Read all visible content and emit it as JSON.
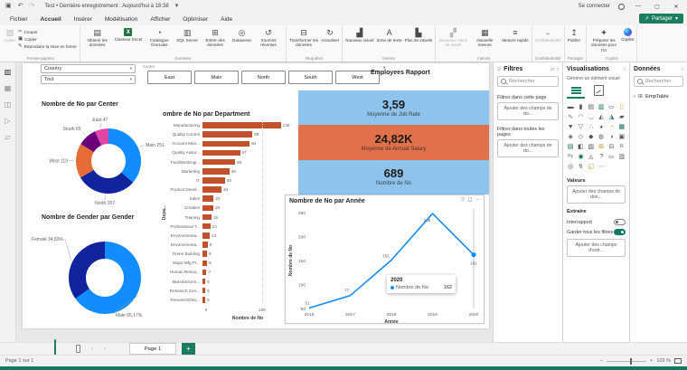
{
  "colors": {
    "accent_green": "#1B7D5F",
    "bar_color": "#C0512B",
    "card_blue": "#8DC3EC",
    "card_orange": "#E1714B",
    "line_color": "#118DFF"
  },
  "titlebar": {
    "title": "Test • Dernière enregistrement : Aujourd'hui à 18:38",
    "signin": "Se connecter"
  },
  "menubar": {
    "tabs": [
      "Fichier",
      "Accueil",
      "Insérer",
      "Modélisation",
      "Afficher",
      "Optimiser",
      "Aide"
    ],
    "active_tab": "Accueil",
    "share_label": "Partager"
  },
  "ribbon": {
    "groups": [
      {
        "label": "Presse-papiers",
        "clipboard": true,
        "items": [
          {
            "label": "Coller",
            "icon": "paste-icon",
            "disabled": true
          },
          {
            "label": "Couper",
            "icon": "cut-icon",
            "disabled": true
          },
          {
            "label": "Copier",
            "icon": "copy-icon",
            "disabled": true
          },
          {
            "label": "Reproduire la mise en forme",
            "icon": "format-painter-icon",
            "disabled": true
          }
        ]
      },
      {
        "label": "Données",
        "items": [
          {
            "label": "Obtenir les données",
            "icon": "get-data-icon"
          },
          {
            "label": "Classeur Excel",
            "icon": "excel-icon"
          },
          {
            "label": "Catalogue OneLake",
            "icon": "onelake-icon"
          },
          {
            "label": "SQL Server",
            "icon": "sql-server-icon"
          },
          {
            "label": "Entrer des données",
            "icon": "enter-data-icon"
          },
          {
            "label": "Dataverse",
            "icon": "dataverse-icon"
          },
          {
            "label": "Sources récentes",
            "icon": "recent-sources-icon"
          }
        ]
      },
      {
        "label": "Requêtes",
        "items": [
          {
            "label": "Transformer les données",
            "icon": "transform-data-icon"
          },
          {
            "label": "Actualiser",
            "icon": "refresh-icon"
          }
        ]
      },
      {
        "label": "Insérer",
        "items": [
          {
            "label": "Nouveau visuel",
            "icon": "new-visual-icon"
          },
          {
            "label": "Zone de texte",
            "icon": "text-box-icon"
          },
          {
            "label": "Plus de visuels",
            "icon": "more-visuals-icon"
          }
        ]
      },
      {
        "label": "Calculs",
        "items": [
          {
            "label": "Nouveau calcul de visuel",
            "icon": "visual-calc-icon",
            "disabled": true
          },
          {
            "label": "Nouvelle mesure",
            "icon": "new-measure-icon"
          },
          {
            "label": "Mesure rapide",
            "icon": "quick-measure-icon"
          }
        ]
      },
      {
        "label": "Confidentialité",
        "items": [
          {
            "label": "Confidentialité",
            "icon": "sensitivity-icon",
            "disabled": true
          }
        ]
      },
      {
        "label": "Partager",
        "items": [
          {
            "label": "Publier",
            "icon": "publish-icon"
          }
        ]
      },
      {
        "label": "Copilot",
        "items": [
          {
            "label": "Préparer les données pour l'IA",
            "icon": "prepare-data-ai-icon"
          },
          {
            "label": "Copilot",
            "icon": "copilot-icon"
          }
        ]
      }
    ]
  },
  "left_rail": {
    "views": [
      "report-view",
      "table-view",
      "model-view",
      "dax-query-view",
      "report-pages-view"
    ]
  },
  "canvas": {
    "country_slicer": {
      "label": "Country",
      "value": "Tout"
    },
    "center_slicer": {
      "label": "Center",
      "buttons": [
        "East",
        "Main",
        "North",
        "South",
        "West"
      ]
    },
    "report_title": "Employees Rapport"
  },
  "chart_data": [
    {
      "type": "donut",
      "title": "Nombre de No par Center",
      "series_label": "Nombre de No",
      "slices": [
        {
          "label": "Main",
          "value": 251,
          "display": "Main 251",
          "color": "#118DFF"
        },
        {
          "label": "North",
          "value": 207,
          "display": "North 207",
          "color": "#12239E"
        },
        {
          "label": "West",
          "value": 119,
          "display": "West 119",
          "color": "#E66C37"
        },
        {
          "label": "South",
          "value": 65,
          "display": "South 65",
          "color": "#6B007B"
        },
        {
          "label": "East",
          "value": 47,
          "display": "East 47",
          "color": "#E044A7"
        }
      ]
    },
    {
      "type": "bar",
      "title": "Nombre de No par Department",
      "xlabel": "Nombre de No",
      "ylabel": "Depa...",
      "xticks": [
        0,
        100
      ],
      "color": "#C0512B",
      "categories": [
        "Manufacturing",
        "Quality Control",
        "Account Man...",
        "Quality Assur...",
        "Facilities/Engi...",
        "Marketing",
        "IT",
        "Product Devel...",
        "Sales",
        "Creative",
        "Training",
        "Professional T...",
        "Environmenta...",
        "Environmenta...",
        "Green Building",
        "Major Mfg Pr...",
        "Human Resou...",
        "Manufacturin...",
        "Research Cen...",
        "Research/Dev..."
      ],
      "values": [
        140,
        89,
        84,
        67,
        58,
        48,
        40,
        34,
        20,
        19,
        16,
        14,
        13,
        9,
        8,
        8,
        7,
        5,
        5,
        5
      ]
    },
    {
      "type": "cards",
      "items": [
        {
          "value": "3,59",
          "label": "Moyenne de Job Rate",
          "bg": "#8DC3EC"
        },
        {
          "value": "24,82K",
          "label": "Moyenne de Annual Salary",
          "bg": "#E1714B"
        },
        {
          "value": "689",
          "label": "Nombre de No",
          "bg": "#8DC3EC"
        }
      ]
    },
    {
      "type": "donut",
      "title": "Nombre de Gender par Gender",
      "slices": [
        {
          "label": "Male",
          "value": 65.17,
          "display": "Male 65,17%",
          "color": "#118DFF"
        },
        {
          "label": "Female",
          "value": 34.83,
          "display": "Female 34,83%",
          "color": "#12239E"
        }
      ]
    },
    {
      "type": "line",
      "title": "Nombre de No par Année",
      "xlabel": "Année",
      "ylabel": "Nombre de No",
      "x": [
        2016,
        2017,
        2018,
        2019,
        2020
      ],
      "values": [
        51,
        77,
        151,
        248,
        162
      ],
      "ylim": [
        50,
        250
      ],
      "yticks": [
        50,
        100,
        150,
        200,
        250
      ],
      "color": "#118DFF",
      "tooltip": {
        "title": "2020",
        "series": "Nombre de No",
        "value": "162"
      }
    }
  ],
  "filters_panel": {
    "title": "Filtres",
    "search_placeholder": "Rechercher",
    "sections": [
      {
        "label": "Filtres dans cette page",
        "placeholder": "Ajouter des champs de do..."
      },
      {
        "label": "Filtres dans toutes les pages",
        "placeholder": "Ajouter des champs de do..."
      }
    ]
  },
  "viz_panel": {
    "title": "Visualisations",
    "subtitle": "Générer un élément visuel",
    "values_label": "Valeurs",
    "values_placeholder": "Ajouter des champs de don...",
    "extract_label": "Extraire",
    "interreport_label": "Interrapport",
    "keep_filters_label": "Garder tous les filtres",
    "extract_placeholder": "Ajouter des champs d'extr...",
    "visual_types": [
      "stacked-bar-chart",
      "stacked-column-chart",
      "clustered-bar-chart",
      "clustered-column-chart",
      "100-stacked-bar-chart",
      "100-stacked-column-chart",
      "line-chart",
      "area-chart",
      "stacked-area-chart",
      "line-and-stacked-column-chart",
      "line-and-clustered-column-chart",
      "ribbon-chart",
      "waterfall-chart",
      "funnel-chart",
      "scatter-chart",
      "pie-chart",
      "donut-chart",
      "treemap",
      "map",
      "filled-map",
      "shape-map",
      "azure-map",
      "gauge",
      "card",
      "multi-row-card",
      "kpi",
      "slicer",
      "table",
      "matrix",
      "r-script-visual",
      "python-visual",
      "key-influencers",
      "decomposition-tree",
      "qa-visual",
      "smart-narrative",
      "paginated-report",
      "arcgis-map",
      "power-apps",
      "scorecard",
      "get-more-visuals"
    ]
  },
  "data_panel": {
    "title": "Données",
    "search_placeholder": "Rechercher",
    "tables": [
      {
        "name": "EmpTable"
      }
    ]
  },
  "bottom_bar": {
    "page_tab": "Page 1"
  },
  "status_bar": {
    "left": "Page 1 sur 1",
    "zoom": "103 %"
  }
}
